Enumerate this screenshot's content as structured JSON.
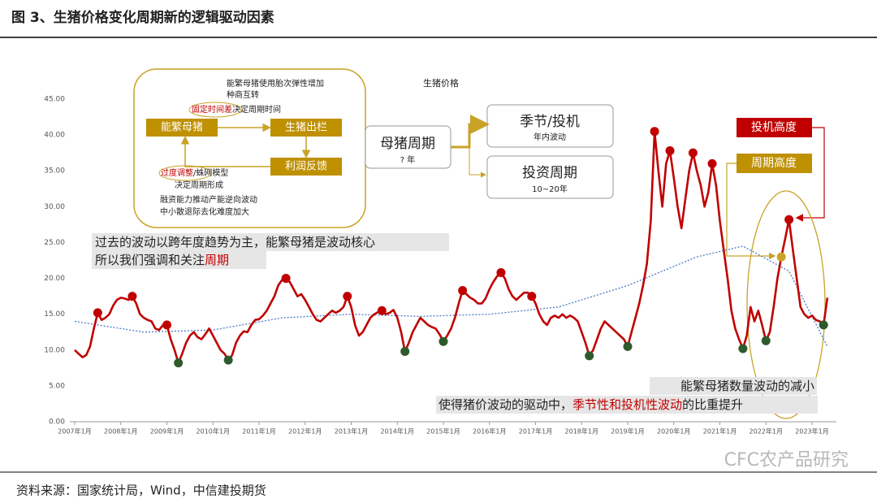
{
  "header": {
    "title": "图 3、生猪价格变化周期新的逻辑驱动因素"
  },
  "source": "资料来源：国家统计局，Wind，中信建投期货",
  "watermark": "CFC农产品研究",
  "chart_data": {
    "type": "line",
    "title": "生猪价格",
    "x": [
      "2007-01",
      "2007-02",
      "2007-03",
      "2007-04",
      "2007-05",
      "2007-06",
      "2007-07",
      "2007-08",
      "2007-09",
      "2007-10",
      "2007-11",
      "2007-12",
      "2008-01",
      "2008-02",
      "2008-03",
      "2008-04",
      "2008-05",
      "2008-06",
      "2008-07",
      "2008-08",
      "2008-09",
      "2008-10",
      "2008-11",
      "2008-12",
      "2009-01",
      "2009-02",
      "2009-03",
      "2009-04",
      "2009-05",
      "2009-06",
      "2009-07",
      "2009-08",
      "2009-09",
      "2009-10",
      "2009-11",
      "2009-12",
      "2010-01",
      "2010-02",
      "2010-03",
      "2010-04",
      "2010-05",
      "2010-06",
      "2010-07",
      "2010-08",
      "2010-09",
      "2010-10",
      "2010-11",
      "2010-12",
      "2011-01",
      "2011-02",
      "2011-03",
      "2011-04",
      "2011-05",
      "2011-06",
      "2011-07",
      "2011-08",
      "2011-09",
      "2011-10",
      "2011-11",
      "2011-12",
      "2012-01",
      "2012-02",
      "2012-03",
      "2012-04",
      "2012-05",
      "2012-06",
      "2012-07",
      "2012-08",
      "2012-09",
      "2012-10",
      "2012-11",
      "2012-12",
      "2013-01",
      "2013-02",
      "2013-03",
      "2013-04",
      "2013-05",
      "2013-06",
      "2013-07",
      "2013-08",
      "2013-09",
      "2013-10",
      "2013-11",
      "2013-12",
      "2014-01",
      "2014-02",
      "2014-03",
      "2014-04",
      "2014-05",
      "2014-06",
      "2014-07",
      "2014-08",
      "2014-09",
      "2014-10",
      "2014-11",
      "2014-12",
      "2015-01",
      "2015-02",
      "2015-03",
      "2015-04",
      "2015-05",
      "2015-06",
      "2015-07",
      "2015-08",
      "2015-09",
      "2015-10",
      "2015-11",
      "2015-12",
      "2016-01",
      "2016-02",
      "2016-03",
      "2016-04",
      "2016-05",
      "2016-06",
      "2016-07",
      "2016-08",
      "2016-09",
      "2016-10",
      "2016-11",
      "2016-12",
      "2017-01",
      "2017-02",
      "2017-03",
      "2017-04",
      "2017-05",
      "2017-06",
      "2017-07",
      "2017-08",
      "2017-09",
      "2017-10",
      "2017-11",
      "2017-12",
      "2018-01",
      "2018-02",
      "2018-03",
      "2018-04",
      "2018-05",
      "2018-06",
      "2018-07",
      "2018-08",
      "2018-09",
      "2018-10",
      "2018-11",
      "2018-12",
      "2019-01",
      "2019-02",
      "2019-03",
      "2019-04",
      "2019-05",
      "2019-06",
      "2019-07",
      "2019-08",
      "2019-09",
      "2019-10",
      "2019-11",
      "2019-12",
      "2020-01",
      "2020-02",
      "2020-03",
      "2020-04",
      "2020-05",
      "2020-06",
      "2020-07",
      "2020-08",
      "2020-09",
      "2020-10",
      "2020-11",
      "2020-12",
      "2021-01",
      "2021-02",
      "2021-03",
      "2021-04",
      "2021-05",
      "2021-06",
      "2021-07",
      "2021-08",
      "2021-09",
      "2021-10",
      "2021-11",
      "2021-12",
      "2022-01",
      "2022-02",
      "2022-03",
      "2022-04",
      "2022-05",
      "2022-06",
      "2022-07",
      "2022-08",
      "2022-09",
      "2022-10",
      "2022-11",
      "2022-12",
      "2023-01",
      "2023-02",
      "2023-03",
      "2023-04",
      "2023-05"
    ],
    "series": [
      {
        "color": "#c00000",
        "values": [
          10,
          9.5,
          9,
          9.3,
          10.5,
          13,
          15.2,
          14.2,
          14.5,
          15,
          16.2,
          17,
          17.3,
          17.2,
          17,
          17.5,
          16.5,
          15,
          14.5,
          14.2,
          14,
          13,
          12.8,
          13.5,
          13.5,
          11.5,
          10,
          8.2,
          9.5,
          11,
          12,
          12.5,
          11.8,
          11.5,
          12.2,
          13,
          12,
          11,
          10,
          9.5,
          8.6,
          9.3,
          11,
          12,
          12.6,
          12.5,
          13.5,
          14.2,
          14.3,
          14.8,
          15.5,
          16.5,
          17.5,
          19,
          19.8,
          20,
          19.5,
          18.5,
          17.5,
          17.8,
          17,
          16,
          15,
          14.2,
          14,
          14.5,
          15,
          15.5,
          15.2,
          15.5,
          16,
          17.5,
          16,
          13.5,
          12,
          12.5,
          13.5,
          14.5,
          15,
          15.3,
          15.5,
          15,
          15.2,
          15.6,
          14.5,
          12.5,
          9.8,
          11,
          12.5,
          13.5,
          14.5,
          14,
          13.5,
          13.2,
          13,
          12.2,
          11.2,
          12,
          13,
          14.5,
          16.5,
          18.3,
          17.8,
          17.3,
          17,
          16.5,
          16.5,
          17.2,
          18.5,
          19.5,
          20.3,
          20.8,
          20,
          18.5,
          17.5,
          17,
          17.5,
          18,
          18,
          17.5,
          16.5,
          15,
          14,
          13.5,
          14.5,
          14.8,
          14.5,
          15,
          14.5,
          14.8,
          14.5,
          14,
          12.5,
          11,
          9.2,
          10,
          11.5,
          13,
          14,
          13.5,
          13,
          12.5,
          12,
          11.5,
          10.5,
          12.5,
          14.5,
          16.5,
          19,
          22,
          28,
          40.5,
          35,
          30,
          36,
          37.8,
          34,
          30,
          27,
          31,
          35,
          37.5,
          35,
          33,
          30,
          32,
          36,
          33,
          28,
          24,
          20,
          15.5,
          13,
          11.5,
          10.2,
          12,
          16,
          14,
          15.5,
          13.5,
          11.3,
          12.5,
          16,
          20,
          23,
          25.5,
          28.2,
          24,
          20,
          16,
          15,
          14.5,
          14.8,
          14.2,
          14,
          13.5,
          17.3
        ]
      }
    ],
    "markers": [
      {
        "x": "2007-07",
        "color": "#c00000"
      },
      {
        "x": "2008-04",
        "color": "#c00000"
      },
      {
        "x": "2009-01",
        "color": "#c00000"
      },
      {
        "x": "2009-04",
        "color": "#2f5a2c"
      },
      {
        "x": "2010-05",
        "color": "#2f5a2c"
      },
      {
        "x": "2011-08",
        "color": "#c00000"
      },
      {
        "x": "2012-12",
        "color": "#c00000"
      },
      {
        "x": "2013-09",
        "color": "#c00000"
      },
      {
        "x": "2014-03",
        "color": "#2f5a2c"
      },
      {
        "x": "2015-01",
        "color": "#2f5a2c"
      },
      {
        "x": "2015-06",
        "color": "#c00000"
      },
      {
        "x": "2016-04",
        "color": "#c00000"
      },
      {
        "x": "2016-12",
        "color": "#c00000"
      },
      {
        "x": "2018-03",
        "color": "#2f5a2c"
      },
      {
        "x": "2019-01",
        "color": "#2f5a2c"
      },
      {
        "x": "2019-08",
        "color": "#c00000"
      },
      {
        "x": "2019-12",
        "color": "#c00000"
      },
      {
        "x": "2020-06",
        "color": "#c00000"
      },
      {
        "x": "2020-11",
        "color": "#c00000"
      },
      {
        "x": "2021-07",
        "color": "#2f5a2c"
      },
      {
        "x": "2022-01",
        "color": "#2f5a2c"
      },
      {
        "x": "2022-05",
        "color": "#c9a227"
      },
      {
        "x": "2022-07",
        "color": "#c00000"
      },
      {
        "x": "2023-04",
        "color": "#2f5a2c"
      }
    ],
    "trend": {
      "color": "#4a7ac8",
      "x": [
        "2007-01",
        "2008-07",
        "2010-01",
        "2011-07",
        "2013-01",
        "2014-07",
        "2016-01",
        "2017-07",
        "2019-01",
        "2020-07",
        "2021-07",
        "2022-07",
        "2023-05"
      ],
      "values": [
        14,
        12.5,
        12.8,
        14.5,
        15,
        14.7,
        15,
        16,
        19,
        23,
        24.5,
        21,
        10.5
      ]
    },
    "xlim": [
      "2007-01",
      "2023-06"
    ],
    "xticks": [
      {
        "value": "2007-01",
        "label": "2007年1月"
      },
      {
        "value": "2008-01",
        "label": "2008年1月"
      },
      {
        "value": "2009-01",
        "label": "2009年1月"
      },
      {
        "value": "2010-01",
        "label": "2010年1月"
      },
      {
        "value": "2011-01",
        "label": "2011年1月"
      },
      {
        "value": "2012-01",
        "label": "2012年1月"
      },
      {
        "value": "2013-01",
        "label": "2013年1月"
      },
      {
        "value": "2014-01",
        "label": "2014年1月"
      },
      {
        "value": "2015-01",
        "label": "2015年1月"
      },
      {
        "value": "2016-01",
        "label": "2016年1月"
      },
      {
        "value": "2017-01",
        "label": "2017年1月"
      },
      {
        "value": "2018-01",
        "label": "2018年1月"
      },
      {
        "value": "2019-01",
        "label": "2019年1月"
      },
      {
        "value": "2020-01",
        "label": "2020年1月"
      },
      {
        "value": "2021-01",
        "label": "2021年1月"
      },
      {
        "value": "2022-01",
        "label": "2022年1月"
      },
      {
        "value": "2023-01",
        "label": "2023年1月"
      }
    ],
    "ylim": [
      0,
      45
    ],
    "yticks": [
      {
        "value": 0,
        "label": "0.00"
      },
      {
        "value": 5,
        "label": "5.00"
      },
      {
        "value": 10,
        "label": "10.00"
      },
      {
        "value": 15,
        "label": "15.00"
      },
      {
        "value": 20,
        "label": "20.00"
      },
      {
        "value": 25,
        "label": "25.00"
      },
      {
        "value": 30,
        "label": "30.00"
      },
      {
        "value": 35,
        "label": "35.00"
      },
      {
        "value": 40,
        "label": "40.00"
      },
      {
        "value": 45,
        "label": "45.00"
      }
    ],
    "grid": false
  },
  "annotations": {
    "diagram": {
      "nodes": [
        "能繁母猪",
        "生猪出栏",
        "利润反馈"
      ],
      "notes": [
        [
          {
            "text": "能繁母猪使用胎次弹性增加"
          }
        ],
        [
          {
            "text": "种商互转"
          }
        ],
        [
          {
            "text": "固定时间差",
            "color": "#c00000"
          },
          {
            "text": "决定周期时间"
          }
        ],
        [
          {
            "text": "过度调整",
            "color": "#c00000"
          },
          {
            "text": "/蛛网模型"
          }
        ],
        [
          {
            "text": "决定周期形成"
          }
        ],
        [
          {
            "text": "融资能力推动产能逆向波动"
          }
        ],
        [
          {
            "text": "中小散退际去化难度加大"
          }
        ]
      ]
    },
    "sow_cycle": {
      "title": "母猪周期",
      "sub": "? 年"
    },
    "season": {
      "title": "季节/投机",
      "sub": "年内波动"
    },
    "invest": {
      "title": "投资周期",
      "sub": "10~20年"
    },
    "spec_height": "投机高度",
    "cycle_height": "周期高度",
    "left_note": [
      [
        {
          "text": "过去的波动以跨年度趋势为主，能繁母猪是波动核心"
        }
      ],
      [
        {
          "text": "所以我们强调和关注"
        },
        {
          "text": "周期",
          "color": "#c00000"
        }
      ]
    ],
    "right_note": [
      [
        {
          "text": "能繁母猪数量波动的减小"
        }
      ],
      [
        {
          "text": "使得猪价波动的驱动中，"
        },
        {
          "text": "季节性和投机性波动",
          "color": "#c00000"
        },
        {
          "text": "的比重提升"
        }
      ]
    ]
  }
}
